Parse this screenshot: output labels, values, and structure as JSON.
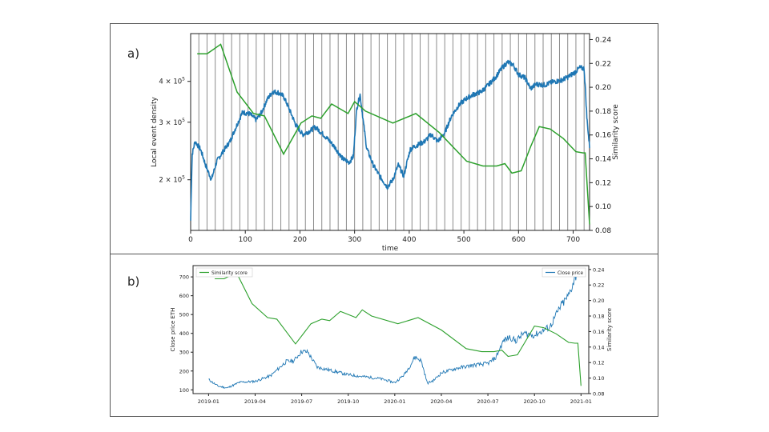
{
  "panels": {
    "a_label": "a)",
    "b_label": "b)"
  },
  "chart_data": [
    {
      "type": "line",
      "id": "a",
      "xlabel": "time",
      "ylabel_left": "Local event density",
      "ylabel_right": "Similarity score",
      "xlim": [
        0,
        730
      ],
      "x_ticks": [
        0,
        100,
        200,
        300,
        400,
        500,
        600,
        700
      ],
      "y_left_scale": "log",
      "y_left_lim": [
        140000,
        560000
      ],
      "y_left_ticks": [
        {
          "value": 200000,
          "label": "2 × 10",
          "exp": "5"
        },
        {
          "value": 300000,
          "label": "3 × 10",
          "exp": "5"
        },
        {
          "value": 400000,
          "label": "4 × 10",
          "exp": "5"
        }
      ],
      "y_right_lim": [
        0.08,
        0.245
      ],
      "y_right_ticks": [
        0.08,
        0.1,
        0.12,
        0.14,
        0.16,
        0.18,
        0.2,
        0.22,
        0.24
      ],
      "window_lines_every": 15,
      "series": [
        {
          "name": "Local event density",
          "axis": "left",
          "color": "#1f77b4",
          "points": [
            [
              0,
              150000
            ],
            [
              3,
              240000
            ],
            [
              8,
              262000
            ],
            [
              18,
              248000
            ],
            [
              28,
              220000
            ],
            [
              38,
              200000
            ],
            [
              48,
              228000
            ],
            [
              60,
              245000
            ],
            [
              72,
              262000
            ],
            [
              85,
              295000
            ],
            [
              95,
              322000
            ],
            [
              108,
              318000
            ],
            [
              120,
              305000
            ],
            [
              130,
              322000
            ],
            [
              140,
              352000
            ],
            [
              150,
              372000
            ],
            [
              160,
              370000
            ],
            [
              170,
              360000
            ],
            [
              180,
              330000
            ],
            [
              192,
              295000
            ],
            [
              205,
              275000
            ],
            [
              218,
              282000
            ],
            [
              228,
              290000
            ],
            [
              240,
              278000
            ],
            [
              255,
              262000
            ],
            [
              265,
              250000
            ],
            [
              278,
              232000
            ],
            [
              290,
              226000
            ],
            [
              298,
              236000
            ],
            [
              304,
              330000
            ],
            [
              310,
              365000
            ],
            [
              316,
              300000
            ],
            [
              322,
              250000
            ],
            [
              334,
              222000
            ],
            [
              346,
              205000
            ],
            [
              360,
              190000
            ],
            [
              370,
              200000
            ],
            [
              380,
              222000
            ],
            [
              390,
              205000
            ],
            [
              402,
              248000
            ],
            [
              414,
              255000
            ],
            [
              428,
              262000
            ],
            [
              440,
              275000
            ],
            [
              452,
              262000
            ],
            [
              465,
              278000
            ],
            [
              478,
              315000
            ],
            [
              492,
              340000
            ],
            [
              505,
              355000
            ],
            [
              518,
              365000
            ],
            [
              532,
              372000
            ],
            [
              546,
              392000
            ],
            [
              558,
              412000
            ],
            [
              570,
              440000
            ],
            [
              580,
              458000
            ],
            [
              590,
              450000
            ],
            [
              600,
              420000
            ],
            [
              612,
              410000
            ],
            [
              622,
              380000
            ],
            [
              632,
              392000
            ],
            [
              648,
              390000
            ],
            [
              662,
              398000
            ],
            [
              678,
              403000
            ],
            [
              690,
              412000
            ],
            [
              702,
              425000
            ],
            [
              712,
              440000
            ],
            [
              720,
              438000
            ],
            [
              725,
              310000
            ],
            [
              730,
              250000
            ]
          ]
        },
        {
          "name": "Similarity score",
          "axis": "right",
          "color": "#2ca02c",
          "points": [
            [
              12,
              0.228
            ],
            [
              30,
              0.228
            ],
            [
              55,
              0.236
            ],
            [
              85,
              0.196
            ],
            [
              115,
              0.178
            ],
            [
              135,
              0.176
            ],
            [
              170,
              0.144
            ],
            [
              202,
              0.17
            ],
            [
              222,
              0.176
            ],
            [
              238,
              0.174
            ],
            [
              258,
              0.186
            ],
            [
              288,
              0.178
            ],
            [
              300,
              0.188
            ],
            [
              320,
              0.18
            ],
            [
              370,
              0.17
            ],
            [
              412,
              0.178
            ],
            [
              455,
              0.162
            ],
            [
              505,
              0.138
            ],
            [
              535,
              0.134
            ],
            [
              560,
              0.134
            ],
            [
              575,
              0.136
            ],
            [
              588,
              0.128
            ],
            [
              605,
              0.13
            ],
            [
              622,
              0.15
            ],
            [
              638,
              0.167
            ],
            [
              658,
              0.165
            ],
            [
              682,
              0.157
            ],
            [
              705,
              0.146
            ],
            [
              718,
              0.145
            ],
            [
              722,
              0.145
            ],
            [
              730,
              0.085
            ]
          ]
        }
      ]
    },
    {
      "type": "line",
      "id": "b",
      "xlabel": "",
      "ylabel_left": "Close price ETH",
      "ylabel_right": "Similarity score",
      "x_ticks": [
        "2019-01",
        "2019-04",
        "2019-07",
        "2019-10",
        "2020-01",
        "2020-04",
        "2020-07",
        "2020-10",
        "2021-01"
      ],
      "xlim": [
        -1.0,
        24.5
      ],
      "y_left_lim": [
        80,
        760
      ],
      "y_left_ticks": [
        100,
        200,
        300,
        400,
        500,
        600,
        700
      ],
      "y_right_lim": [
        0.08,
        0.245
      ],
      "y_right_ticks": [
        0.08,
        0.1,
        0.12,
        0.14,
        0.16,
        0.18,
        0.2,
        0.22,
        0.24
      ],
      "legend_left": "Similarity score",
      "legend_right": "Close price",
      "series": [
        {
          "name": "Close price",
          "axis": "left",
          "color": "#1f77b4",
          "points": [
            [
              0,
              155
            ],
            [
              0.6,
              120
            ],
            [
              1.2,
              110
            ],
            [
              2.0,
              140
            ],
            [
              3.0,
              145
            ],
            [
              4.0,
              175
            ],
            [
              5.0,
              250
            ],
            [
              5.5,
              255
            ],
            [
              6.0,
              305
            ],
            [
              6.4,
              300
            ],
            [
              7.0,
              220
            ],
            [
              7.8,
              205
            ],
            [
              9.0,
              180
            ],
            [
              10.0,
              170
            ],
            [
              11.0,
              160
            ],
            [
              11.5,
              150
            ],
            [
              12.0,
              138
            ],
            [
              12.6,
              180
            ],
            [
              13.0,
              230
            ],
            [
              13.3,
              275
            ],
            [
              13.7,
              255
            ],
            [
              14.1,
              135
            ],
            [
              14.5,
              150
            ],
            [
              15.0,
              190
            ],
            [
              16.0,
              215
            ],
            [
              17.0,
              230
            ],
            [
              18.0,
              240
            ],
            [
              18.5,
              270
            ],
            [
              19.0,
              360
            ],
            [
              19.4,
              380
            ],
            [
              19.8,
              360
            ],
            [
              20.3,
              400
            ],
            [
              21.0,
              390
            ],
            [
              22.0,
              435
            ],
            [
              22.7,
              545
            ],
            [
              23.2,
              600
            ],
            [
              23.8,
              740
            ]
          ]
        },
        {
          "name": "Similarity score",
          "axis": "right",
          "color": "#2ca02c",
          "points": [
            [
              0.4,
              0.228
            ],
            [
              1.0,
              0.228
            ],
            [
              1.8,
              0.236
            ],
            [
              2.8,
              0.196
            ],
            [
              3.8,
              0.178
            ],
            [
              4.4,
              0.176
            ],
            [
              5.6,
              0.144
            ],
            [
              6.6,
              0.17
            ],
            [
              7.3,
              0.176
            ],
            [
              7.8,
              0.174
            ],
            [
              8.5,
              0.186
            ],
            [
              9.5,
              0.178
            ],
            [
              9.9,
              0.188
            ],
            [
              10.5,
              0.18
            ],
            [
              12.2,
              0.17
            ],
            [
              13.5,
              0.178
            ],
            [
              15.0,
              0.162
            ],
            [
              16.6,
              0.138
            ],
            [
              17.6,
              0.134
            ],
            [
              18.4,
              0.134
            ],
            [
              18.9,
              0.136
            ],
            [
              19.3,
              0.128
            ],
            [
              19.9,
              0.13
            ],
            [
              20.5,
              0.15
            ],
            [
              21.0,
              0.167
            ],
            [
              21.6,
              0.165
            ],
            [
              22.4,
              0.157
            ],
            [
              23.2,
              0.146
            ],
            [
              23.6,
              0.145
            ],
            [
              23.8,
              0.145
            ],
            [
              24.0,
              0.09
            ]
          ]
        }
      ]
    }
  ]
}
